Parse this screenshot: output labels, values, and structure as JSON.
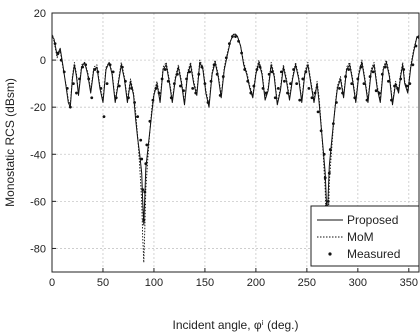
{
  "chart_data": {
    "type": "line",
    "xlabel": "Incident angle, φⁱ (deg.)",
    "ylabel": "Monostatic RCS (dBsm)",
    "xlim": [
      0,
      360
    ],
    "ylim": [
      -90,
      20
    ],
    "xticks": [
      0,
      50,
      100,
      150,
      200,
      250,
      300,
      350
    ],
    "yticks": [
      -80,
      -60,
      -40,
      -20,
      0,
      20
    ],
    "grid": true,
    "legend_position": "bottom-right",
    "series": [
      {
        "name": "Proposed",
        "style": "solid",
        "x": [
          0,
          2,
          5,
          8,
          11,
          14,
          16,
          18,
          20,
          22,
          24,
          26,
          29,
          32,
          35,
          38,
          41,
          44,
          47,
          50,
          53,
          56,
          59,
          62,
          65,
          68,
          71,
          74,
          77,
          80,
          82,
          84,
          86,
          88,
          89,
          90,
          91,
          92,
          94,
          96,
          98,
          100,
          103,
          106,
          109,
          112,
          115,
          118,
          121,
          124,
          127,
          130,
          133,
          136,
          139,
          142,
          145,
          148,
          151,
          154,
          157,
          160,
          163,
          166,
          169,
          172,
          175,
          178,
          180,
          182,
          185,
          188,
          191,
          194,
          197,
          200,
          203,
          206,
          209,
          212,
          215,
          218,
          221,
          224,
          227,
          230,
          233,
          236,
          239,
          242,
          245,
          248,
          251,
          254,
          257,
          260,
          262,
          264,
          266,
          268,
          269,
          270,
          271,
          272,
          274,
          276,
          278,
          280,
          283,
          286,
          289,
          292,
          295,
          298,
          301,
          304,
          307,
          310,
          313,
          316,
          319,
          322,
          325,
          328,
          331,
          334,
          337,
          340,
          342,
          344,
          346,
          349,
          352,
          355,
          358,
          360
        ],
        "y": [
          10,
          9,
          2,
          5,
          -3,
          -12,
          -18,
          -20,
          -8,
          -2,
          -7,
          -15,
          -3,
          -1,
          -6,
          -14,
          -4,
          -3,
          -12,
          -18,
          -4,
          -1,
          -6,
          -18,
          -10,
          -2,
          -8,
          -18,
          -9,
          -15,
          -25,
          -33,
          -40,
          -48,
          -60,
          -70,
          -58,
          -46,
          -38,
          -30,
          -22,
          -15,
          -10,
          -18,
          -4,
          -2,
          -9,
          -18,
          -8,
          -3,
          -10,
          -19,
          -6,
          -2,
          -10,
          -15,
          -1,
          -4,
          -14,
          -20,
          -6,
          -1,
          -7,
          -16,
          -4,
          2,
          8,
          11,
          11,
          10,
          6,
          -2,
          -6,
          -12,
          -16,
          -6,
          -1,
          -6,
          -17,
          -13,
          -2,
          -7,
          -19,
          -13,
          -3,
          -9,
          -17,
          -8,
          -2,
          -8,
          -18,
          -6,
          -2,
          -10,
          -18,
          -10,
          -18,
          -28,
          -38,
          -48,
          -58,
          -68,
          -56,
          -45,
          -36,
          -27,
          -19,
          -12,
          -8,
          -16,
          -4,
          -2,
          -9,
          -18,
          -6,
          -1,
          -9,
          -18,
          -5,
          -2,
          -12,
          -18,
          -4,
          -1,
          -7,
          -19,
          -10,
          -14,
          -7,
          -2,
          -10,
          -14,
          -3,
          4,
          10,
          9
        ]
      },
      {
        "name": "MoM",
        "style": "dotted",
        "x": [
          0,
          2,
          5,
          8,
          11,
          14,
          16,
          18,
          20,
          22,
          24,
          26,
          29,
          32,
          35,
          38,
          41,
          44,
          47,
          50,
          53,
          56,
          59,
          62,
          65,
          68,
          71,
          74,
          77,
          80,
          82,
          84,
          86,
          88,
          89,
          90,
          91,
          92,
          94,
          96,
          98,
          100,
          103,
          106,
          109,
          112,
          115,
          118,
          121,
          124,
          127,
          130,
          133,
          136,
          139,
          142,
          145,
          148,
          151,
          154,
          157,
          160,
          163,
          166,
          169,
          172,
          175,
          178,
          180,
          182,
          185,
          188,
          191,
          194,
          197,
          200,
          203,
          206,
          209,
          212,
          215,
          218,
          221,
          224,
          227,
          230,
          233,
          236,
          239,
          242,
          245,
          248,
          251,
          254,
          257,
          260,
          262,
          264,
          266,
          268,
          269,
          270,
          271,
          272,
          274,
          276,
          278,
          280,
          283,
          286,
          289,
          292,
          295,
          298,
          301,
          304,
          307,
          310,
          313,
          316,
          319,
          322,
          325,
          328,
          331,
          334,
          337,
          340,
          342,
          344,
          346,
          349,
          352,
          355,
          358,
          360
        ],
        "y": [
          11,
          8,
          1,
          4,
          -4,
          -11,
          -17,
          -19,
          -7,
          -1,
          -6,
          -14,
          -2,
          -1,
          -5,
          -13,
          -3,
          -2,
          -11,
          -17,
          -3,
          -1,
          -5,
          -17,
          -9,
          -1,
          -7,
          -17,
          -8,
          -14,
          -22,
          -32,
          -45,
          -60,
          -75,
          -86,
          -72,
          -55,
          -42,
          -30,
          -20,
          -14,
          -9,
          -17,
          -3,
          -1,
          -8,
          -17,
          -7,
          -2,
          -9,
          -18,
          -5,
          -1,
          -9,
          -14,
          0,
          -3,
          -13,
          -19,
          -5,
          0,
          -6,
          -15,
          -3,
          3,
          8,
          11,
          11,
          10,
          6,
          -1,
          -5,
          -11,
          -15,
          -5,
          0,
          -5,
          -16,
          -12,
          -1,
          -6,
          -18,
          -12,
          -2,
          -8,
          -16,
          -7,
          -1,
          -7,
          -17,
          -5,
          -1,
          -9,
          -17,
          -9,
          -16,
          -27,
          -40,
          -55,
          -70,
          -84,
          -70,
          -52,
          -40,
          -28,
          -18,
          -11,
          -7,
          -15,
          -3,
          -1,
          -8,
          -17,
          -5,
          0,
          -8,
          -17,
          -4,
          -1,
          -11,
          -17,
          -3,
          0,
          -6,
          -18,
          -9,
          -13,
          -6,
          -1,
          -9,
          -13,
          -2,
          5,
          10,
          9
        ]
      },
      {
        "name": "Measured",
        "style": "markers",
        "x": [
          0,
          3,
          6,
          9,
          12,
          15,
          18,
          21,
          24,
          27,
          30,
          33,
          36,
          39,
          42,
          45,
          48,
          51,
          54,
          57,
          60,
          63,
          66,
          69,
          72,
          75,
          78,
          81,
          84,
          87,
          88,
          89,
          90,
          91,
          92,
          93,
          96,
          99,
          102,
          105,
          108,
          111,
          114,
          117,
          120,
          123,
          126,
          129,
          132,
          135,
          138,
          141,
          144,
          147,
          150,
          153,
          156,
          159,
          162,
          165,
          168,
          171,
          174,
          177,
          180,
          183,
          186,
          189,
          192,
          195,
          198,
          201,
          204,
          207,
          210,
          213,
          216,
          219,
          222,
          225,
          228,
          231,
          234,
          237,
          240,
          243,
          246,
          249,
          252,
          255,
          258,
          261,
          264,
          267,
          268,
          269,
          270,
          271,
          272,
          273,
          276,
          279,
          282,
          285,
          288,
          291,
          294,
          297,
          300,
          303,
          306,
          309,
          312,
          315,
          318,
          321,
          324,
          327,
          330,
          333,
          336,
          339,
          342,
          345,
          348,
          351,
          354,
          357,
          360
        ],
        "y": [
          10,
          7,
          3,
          0,
          -5,
          -12,
          -20,
          -10,
          -14,
          -8,
          -3,
          -2,
          -8,
          -16,
          -4,
          -5,
          -12,
          -24,
          -10,
          -2,
          -5,
          -16,
          -11,
          -3,
          -9,
          -16,
          -12,
          -18,
          -24,
          -34,
          -42,
          -55,
          -68,
          -56,
          -44,
          -36,
          -26,
          -17,
          -12,
          -14,
          -8,
          -4,
          -9,
          -16,
          -10,
          -6,
          -11,
          -13,
          -8,
          -5,
          -12,
          -14,
          -6,
          -3,
          -10,
          -18,
          -9,
          -2,
          -6,
          -15,
          -7,
          1,
          7,
          10,
          10,
          8,
          3,
          -4,
          -9,
          -14,
          -11,
          -4,
          -3,
          -12,
          -14,
          -6,
          -5,
          -16,
          -12,
          -5,
          -9,
          -14,
          -10,
          -4,
          -10,
          -17,
          -8,
          -5,
          -12,
          -16,
          -14,
          -22,
          -30,
          -40,
          -50,
          -62,
          -72,
          -60,
          -48,
          -38,
          -27,
          -18,
          -12,
          -14,
          -7,
          -4,
          -10,
          -16,
          -8,
          -3,
          -10,
          -17,
          -7,
          -5,
          -13,
          -14,
          -6,
          -3,
          -9,
          -17,
          -11,
          -12,
          -8,
          -4,
          -11,
          -10,
          -2,
          6,
          10
        ]
      }
    ]
  }
}
